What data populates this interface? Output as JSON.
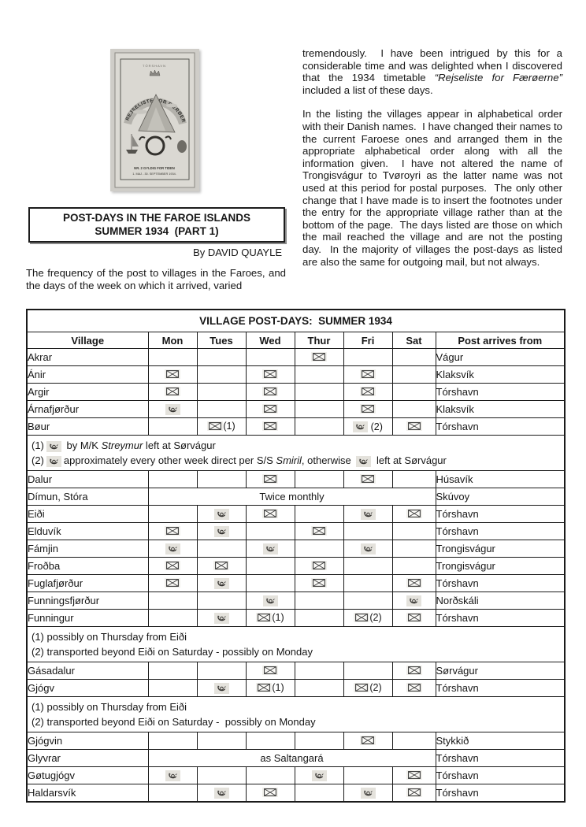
{
  "cover": {
    "top_text": "TÓRSHAVN",
    "banner_text": "REJSELISTE FOR FÆRØERNE",
    "nr_line": "NR. 2   GYLDIG FOR TIDEN",
    "date_line": "1. MAJ - 30. SEPTEMBER 1934."
  },
  "header": {
    "title_line1": "POST-DAYS IN THE FAROE ISLANDS",
    "title_line2": "SUMMER 1934  (PART 1)",
    "byline": "By DAVID QUAYLE"
  },
  "intro": {
    "left_paragraph": "The frequency of the post to villages in the Faroes, and the days of the week on which it arrived, varied",
    "right_paragraph1": [
      {
        "text": "tremendously.  I have been intrigued by this for a considerable time and was delighted when I discovered that the 1934 timetable "
      },
      {
        "text": "“Rejseliste for Færøerne”",
        "italic": true
      },
      {
        "text": " included a list of these days."
      }
    ],
    "right_paragraph2": "In the listing the villages appear in alphabetical order with their Danish names.  I have changed their names to the current Faroese ones and arranged them in the appropriate alphabetical order along with all the information given.  I have not altered the name of Trongisvágur to Tvøroyri as the latter name was not used at this period for postal purposes.  The only other change that I have made is to insert the footnotes under the entry for the appropriate village rather than at the bottom of the page.  The days listed are those on which the mail reached the village and are not the posting day.  In the majority of villages the post-days as listed are also the same for outgoing mail, but not always."
  },
  "table": {
    "title": "VILLAGE POST-DAYS:  SUMMER 1934",
    "columns": [
      "Village",
      "Mon",
      "Tues",
      "Wed",
      "Thur",
      "Fri",
      "Sat",
      "Post arrives from"
    ],
    "rows": [
      {
        "village": "Akrar",
        "cells": [
          null,
          null,
          null,
          {
            "icon": "envelope"
          },
          null,
          null
        ],
        "from": "Vágur"
      },
      {
        "village": "Ánir",
        "cells": [
          {
            "icon": "envelope"
          },
          null,
          {
            "icon": "envelope"
          },
          null,
          {
            "icon": "envelope"
          },
          null
        ],
        "from": "Klaksvík"
      },
      {
        "village": "Argir",
        "cells": [
          {
            "icon": "envelope"
          },
          null,
          {
            "icon": "envelope"
          },
          null,
          {
            "icon": "envelope"
          },
          null
        ],
        "from": "Tórshavn"
      },
      {
        "village": "Árnafjørður",
        "cells": [
          {
            "icon": "posthorn"
          },
          null,
          {
            "icon": "envelope"
          },
          null,
          {
            "icon": "envelope"
          },
          null
        ],
        "from": "Klaksvík"
      },
      {
        "village": "Bøur",
        "cells": [
          null,
          {
            "icon": "envelope",
            "note": "(1)"
          },
          {
            "icon": "envelope"
          },
          null,
          {
            "icon": "posthorn",
            "note": " (2)"
          },
          {
            "icon": "envelope"
          }
        ],
        "from": "Tórshavn"
      },
      {
        "footnote": [
          [
            {
              "text": "(1)"
            },
            {
              "icon": "posthorn"
            },
            {
              "text": " by M/K "
            },
            {
              "text": "Streymur",
              "italic": true
            },
            {
              "text": " left at Sørvágur"
            }
          ],
          [
            {
              "text": "(2)"
            },
            {
              "icon": "posthorn"
            },
            {
              "text": "approximately every other week direct per S/S "
            },
            {
              "text": "Smiril",
              "italic": true
            },
            {
              "text": ", otherwise "
            },
            {
              "icon": "posthorn"
            },
            {
              "text": " left at Sørvágur"
            }
          ]
        ]
      },
      {
        "village": "Dalur",
        "cells": [
          null,
          null,
          {
            "icon": "envelope"
          },
          null,
          {
            "icon": "envelope"
          },
          null
        ],
        "from": "Húsavík"
      },
      {
        "village": "Dímun, Stóra",
        "span": "Twice monthly",
        "from": "Skúvoy"
      },
      {
        "village": "Eiði",
        "cells": [
          null,
          {
            "icon": "posthorn"
          },
          {
            "icon": "envelope"
          },
          null,
          {
            "icon": "posthorn"
          },
          {
            "icon": "envelope"
          }
        ],
        "from": "Tórshavn"
      },
      {
        "village": "Elduvík",
        "cells": [
          {
            "icon": "envelope"
          },
          {
            "icon": "posthorn"
          },
          null,
          {
            "icon": "envelope"
          },
          null,
          null
        ],
        "from": "Tórshavn"
      },
      {
        "village": "Fámjin",
        "cells": [
          {
            "icon": "posthorn"
          },
          null,
          {
            "icon": "posthorn"
          },
          null,
          {
            "icon": "posthorn"
          },
          null
        ],
        "from": "Trongisvágur"
      },
      {
        "village": "Froðba",
        "cells": [
          {
            "icon": "envelope"
          },
          {
            "icon": "envelope"
          },
          null,
          {
            "icon": "envelope"
          },
          null,
          null
        ],
        "from": "Trongisvágur"
      },
      {
        "village": "Fuglafjørður",
        "cells": [
          {
            "icon": "envelope"
          },
          {
            "icon": "posthorn"
          },
          null,
          {
            "icon": "envelope"
          },
          null,
          {
            "icon": "envelope"
          }
        ],
        "from": "Tórshavn"
      },
      {
        "village": "Funningsfjørður",
        "cells": [
          null,
          null,
          {
            "icon": "posthorn"
          },
          null,
          null,
          {
            "icon": "posthorn"
          }
        ],
        "from": "Norðskáli"
      },
      {
        "village": "Funningur",
        "cells": [
          null,
          {
            "icon": "posthorn"
          },
          {
            "icon": "envelope",
            "note": "(1)"
          },
          null,
          {
            "icon": "envelope",
            "note": "(2)"
          },
          {
            "icon": "envelope"
          }
        ],
        "from": "Tórshavn"
      },
      {
        "footnote": [
          [
            {
              "text": "(1) possibly on Thursday from Eiði"
            }
          ],
          [
            {
              "text": "(2) transported beyond Eiði on Saturday - possibly on Monday"
            }
          ]
        ]
      },
      {
        "village": "Gásadalur",
        "cells": [
          null,
          null,
          {
            "icon": "envelope"
          },
          null,
          null,
          {
            "icon": "envelope"
          }
        ],
        "from": "Sørvágur"
      },
      {
        "village": "Gjógv",
        "cells": [
          null,
          {
            "icon": "posthorn"
          },
          {
            "icon": "envelope",
            "note": "(1)"
          },
          null,
          {
            "icon": "envelope",
            "note": "(2)"
          },
          {
            "icon": "envelope"
          }
        ],
        "from": "Tórshavn"
      },
      {
        "footnote": [
          [
            {
              "text": "(1) possibly on Thursday from Eiði"
            }
          ],
          [
            {
              "text": "(2) transported beyond Eiði on Saturday -  possibly on Monday"
            }
          ]
        ]
      },
      {
        "village": "Gjógvin",
        "cells": [
          null,
          null,
          null,
          null,
          {
            "icon": "envelope"
          },
          null
        ],
        "from": "Stykkið"
      },
      {
        "village": "Glyvrar",
        "span": "as Saltangará",
        "from": "Tórshavn"
      },
      {
        "village": "Gøtugjógv",
        "cells": [
          {
            "icon": "posthorn"
          },
          null,
          null,
          {
            "icon": "posthorn"
          },
          null,
          {
            "icon": "envelope"
          }
        ],
        "from": "Tórshavn"
      },
      {
        "village": "Haldarsvík",
        "cells": [
          null,
          {
            "icon": "posthorn"
          },
          {
            "icon": "envelope"
          },
          null,
          {
            "icon": "posthorn"
          },
          {
            "icon": "envelope"
          }
        ],
        "from": "Tórshavn"
      }
    ]
  }
}
